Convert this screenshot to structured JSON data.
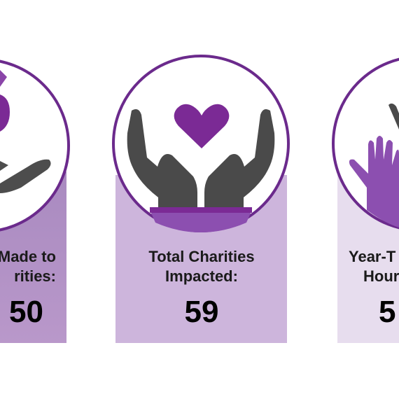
{
  "cards": [
    {
      "label_lines": [
        "Made to",
        "rities:"
      ],
      "value": 50
    },
    {
      "label_lines": [
        "Total Charities",
        "Impacted:"
      ],
      "value": 59
    },
    {
      "label_lines": [
        "Year-T",
        "Hour"
      ],
      "value": 5
    }
  ]
}
